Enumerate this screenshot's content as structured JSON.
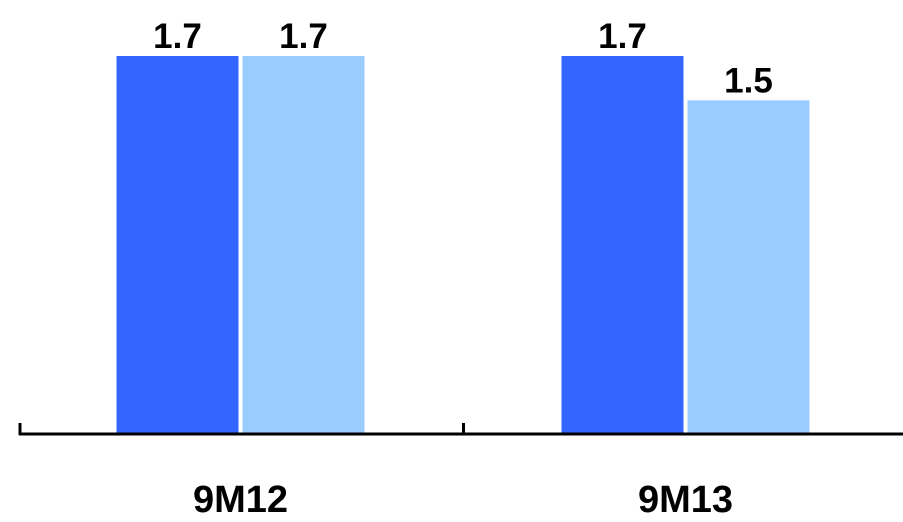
{
  "chart_data": {
    "type": "bar",
    "categories": [
      "9M12",
      "9M13"
    ],
    "series": [
      {
        "color": "#3366ff",
        "values": [
          1.7,
          1.7
        ]
      },
      {
        "color": "#99ccff",
        "values": [
          1.7,
          1.5
        ]
      }
    ],
    "value_labels": [
      [
        "1.7",
        "1.7"
      ],
      [
        "1.7",
        "1.5"
      ]
    ],
    "ylim": [
      0,
      1.7
    ],
    "grid": false,
    "legend": "none",
    "axis_color": "#000000"
  }
}
